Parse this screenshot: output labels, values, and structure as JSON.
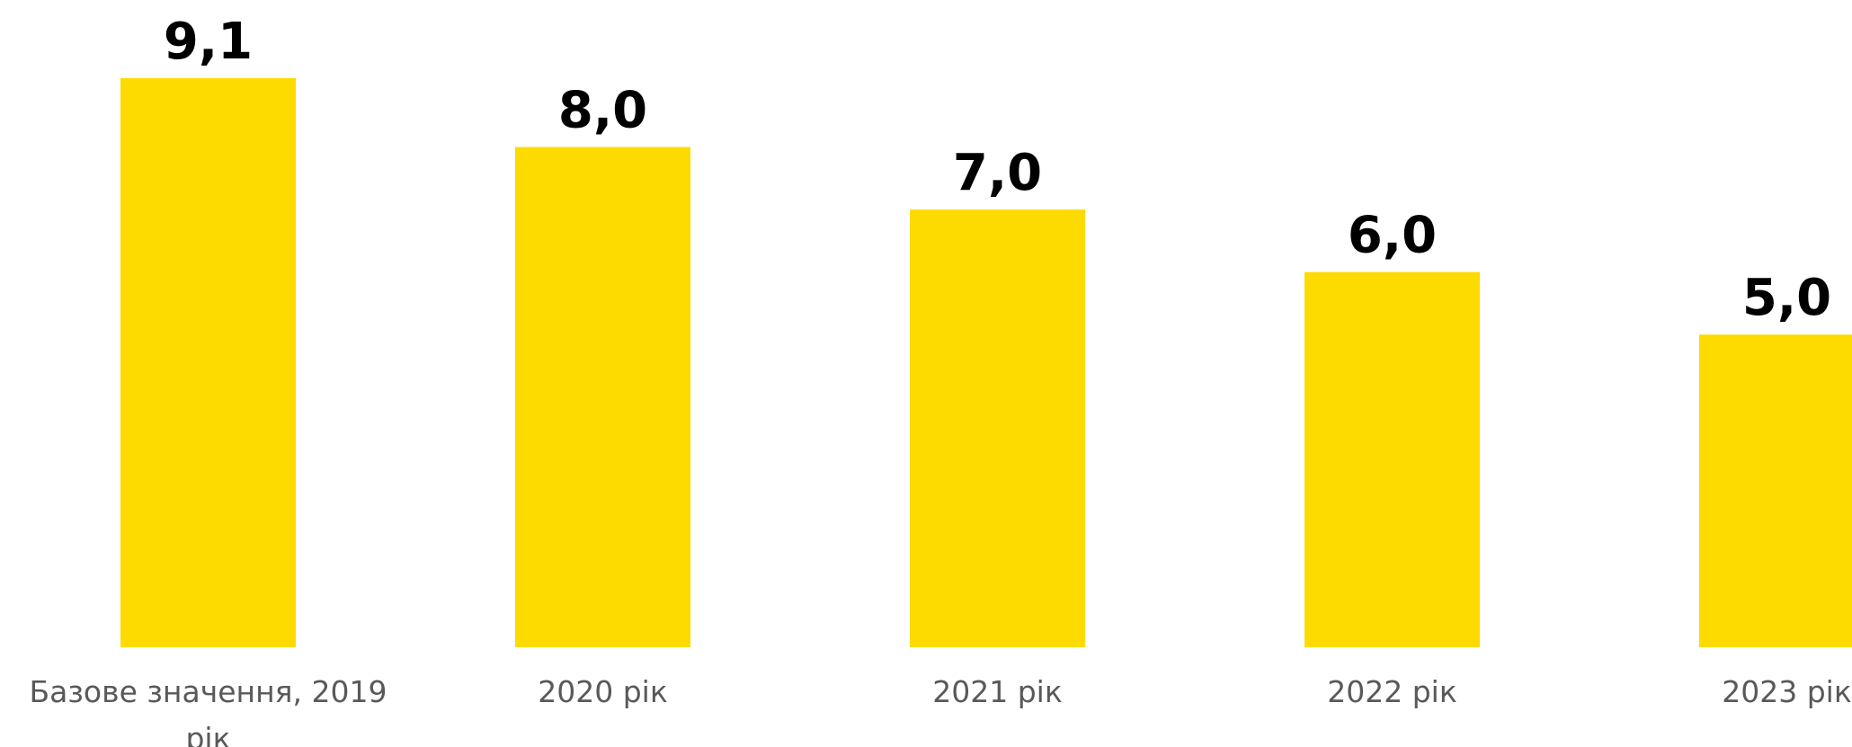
{
  "chart_data": {
    "type": "bar",
    "categories": [
      [
        "Базове значення, 2019",
        "рік"
      ],
      [
        "2020 рік"
      ],
      [
        "2021 рік"
      ],
      [
        "2022 рік"
      ],
      [
        "2023 рік"
      ]
    ],
    "values": [
      9.1,
      8.0,
      7.0,
      6.0,
      5.0
    ],
    "value_labels": [
      "9,1",
      "8,0",
      "7,0",
      "6,0",
      "5,0"
    ],
    "ylim": [
      0,
      9.1
    ],
    "grid": false,
    "legend": "none",
    "title": "",
    "xlabel": "",
    "ylabel": "",
    "colors": {
      "bar": "#FDDB00",
      "value_text": "#000000",
      "category_text": "#595959"
    }
  }
}
